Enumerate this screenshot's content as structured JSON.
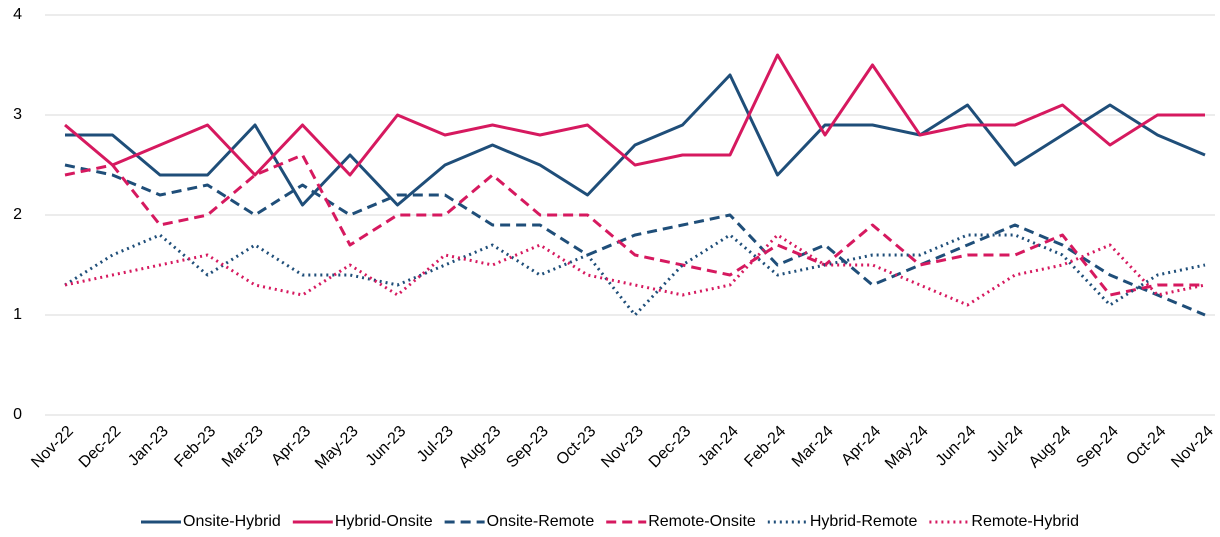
{
  "chart_data": {
    "type": "line",
    "categories": [
      "Nov-22",
      "Dec-22",
      "Jan-23",
      "Feb-23",
      "Mar-23",
      "Apr-23",
      "May-23",
      "Jun-23",
      "Jul-23",
      "Aug-23",
      "Sep-23",
      "Oct-23",
      "Nov-23",
      "Dec-23",
      "Jan-24",
      "Feb-24",
      "Mar-24",
      "Apr-24",
      "May-24",
      "Jun-24",
      "Jul-24",
      "Aug-24",
      "Sep-24",
      "Oct-24",
      "Nov-24"
    ],
    "series": [
      {
        "name": "Onsite-Hybrid",
        "color": "#1f4e79",
        "dash": "solid",
        "values": [
          2.8,
          2.8,
          2.4,
          2.4,
          2.9,
          2.1,
          2.6,
          2.1,
          2.5,
          2.7,
          2.5,
          2.2,
          2.7,
          2.9,
          3.4,
          2.4,
          2.9,
          2.9,
          2.8,
          3.1,
          2.5,
          2.8,
          3.1,
          2.8,
          2.6
        ]
      },
      {
        "name": "Hybrid-Onsite",
        "color": "#d6195f",
        "dash": "solid",
        "values": [
          2.9,
          2.5,
          2.7,
          2.9,
          2.4,
          2.9,
          2.4,
          3.0,
          2.8,
          2.9,
          2.8,
          2.9,
          2.5,
          2.6,
          2.6,
          3.6,
          2.8,
          3.5,
          2.8,
          2.9,
          2.9,
          3.1,
          2.7,
          3.0,
          3.0
        ]
      },
      {
        "name": "Onsite-Remote",
        "color": "#1f4e79",
        "dash": "dashed",
        "values": [
          2.5,
          2.4,
          2.2,
          2.3,
          2.0,
          2.3,
          2.0,
          2.2,
          2.2,
          1.9,
          1.9,
          1.6,
          1.8,
          1.9,
          2.0,
          1.5,
          1.7,
          1.3,
          1.5,
          1.7,
          1.9,
          1.7,
          1.4,
          1.2,
          1.0
        ]
      },
      {
        "name": "Remote-Onsite",
        "color": "#d6195f",
        "dash": "dashed",
        "values": [
          2.4,
          2.5,
          1.9,
          2.0,
          2.4,
          2.6,
          1.7,
          2.0,
          2.0,
          2.4,
          2.0,
          2.0,
          1.6,
          1.5,
          1.4,
          1.7,
          1.5,
          1.9,
          1.5,
          1.6,
          1.6,
          1.8,
          1.2,
          1.3,
          1.3
        ]
      },
      {
        "name": "Hybrid-Remote",
        "color": "#1f4e79",
        "dash": "dotted",
        "values": [
          1.3,
          1.6,
          1.8,
          1.4,
          1.7,
          1.4,
          1.4,
          1.3,
          1.5,
          1.7,
          1.4,
          1.6,
          1.0,
          1.5,
          1.8,
          1.4,
          1.5,
          1.6,
          1.6,
          1.8,
          1.8,
          1.6,
          1.1,
          1.4,
          1.5
        ]
      },
      {
        "name": "Remote-Hybrid",
        "color": "#d6195f",
        "dash": "dotted",
        "values": [
          1.3,
          1.4,
          1.5,
          1.6,
          1.3,
          1.2,
          1.5,
          1.2,
          1.6,
          1.5,
          1.7,
          1.4,
          1.3,
          1.2,
          1.3,
          1.8,
          1.5,
          1.5,
          1.3,
          1.1,
          1.4,
          1.5,
          1.7,
          1.2,
          1.3
        ]
      }
    ],
    "ylim": [
      0,
      4
    ],
    "yticks": [
      0,
      1,
      2,
      3,
      4
    ],
    "grid": true,
    "legend": "bottom"
  }
}
